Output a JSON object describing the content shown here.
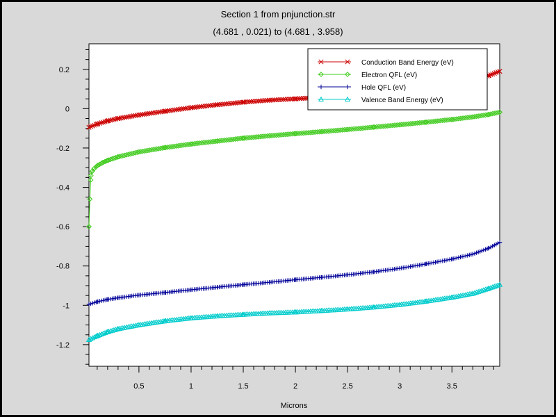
{
  "chart_data": {
    "type": "line",
    "title": "Section 1 from pnjunction.str",
    "subtitle": "(4.681 , 0.021) to (4.681 , 3.958)",
    "xlabel": "Microns",
    "ylabel": "",
    "xlim": [
      0.021,
      3.958
    ],
    "ylim": [
      -1.31,
      0.33
    ],
    "xticks": [
      {
        "v": 0.5,
        "label": "0.5"
      },
      {
        "v": 1,
        "label": "1"
      },
      {
        "v": 1.5,
        "label": "1.5"
      },
      {
        "v": 2,
        "label": "2"
      },
      {
        "v": 2.5,
        "label": "2.5"
      },
      {
        "v": 3,
        "label": "3"
      },
      {
        "v": 3.5,
        "label": "3.5"
      }
    ],
    "yticks": [
      {
        "v": 0.2,
        "label": "0.2"
      },
      {
        "v": 0,
        "label": "0"
      },
      {
        "v": -0.2,
        "label": "-0.2"
      },
      {
        "v": -0.4,
        "label": "-0.4"
      },
      {
        "v": -0.6,
        "label": "-0.6"
      },
      {
        "v": -0.8,
        "label": "-0.8"
      },
      {
        "v": -1,
        "label": "-1"
      },
      {
        "v": -1.2,
        "label": "-1.2"
      }
    ],
    "grid": false,
    "legend_position": "top-right",
    "series": [
      {
        "name": "Conduction Band Energy (eV)",
        "color": "#cc0000",
        "marker": "x",
        "x": [
          0.021,
          0.1,
          0.2,
          0.3,
          0.5,
          0.75,
          1.0,
          1.25,
          1.5,
          1.75,
          2.0,
          2.25,
          2.5,
          2.75,
          3.0,
          3.25,
          3.5,
          3.7,
          3.85,
          3.958
        ],
        "y": [
          -0.095,
          -0.078,
          -0.062,
          -0.05,
          -0.032,
          -0.013,
          0.005,
          0.02,
          0.033,
          0.043,
          0.05,
          0.058,
          0.068,
          0.078,
          0.09,
          0.105,
          0.125,
          0.145,
          0.168,
          0.19
        ]
      },
      {
        "name": "Electron QFL (eV)",
        "color": "#44cc22",
        "marker": "diamond",
        "x": [
          0.021,
          0.03,
          0.04,
          0.05,
          0.07,
          0.1,
          0.15,
          0.2,
          0.3,
          0.5,
          0.75,
          1.0,
          1.25,
          1.5,
          1.75,
          2.0,
          2.25,
          2.5,
          2.75,
          3.0,
          3.25,
          3.5,
          3.7,
          3.85,
          3.958
        ],
        "y": [
          -0.6,
          -0.46,
          -0.34,
          -0.32,
          -0.305,
          -0.29,
          -0.275,
          -0.263,
          -0.245,
          -0.22,
          -0.198,
          -0.18,
          -0.165,
          -0.15,
          -0.138,
          -0.127,
          -0.117,
          -0.106,
          -0.094,
          -0.082,
          -0.069,
          -0.055,
          -0.042,
          -0.03,
          -0.018
        ]
      },
      {
        "name": "Hole QFL (eV)",
        "color": "#000099",
        "marker": "plus",
        "x": [
          0.021,
          0.1,
          0.2,
          0.3,
          0.5,
          0.75,
          1.0,
          1.25,
          1.5,
          1.75,
          2.0,
          2.25,
          2.5,
          2.75,
          3.0,
          3.25,
          3.5,
          3.7,
          3.85,
          3.958
        ],
        "y": [
          -0.995,
          -0.982,
          -0.97,
          -0.962,
          -0.948,
          -0.935,
          -0.921,
          -0.908,
          -0.895,
          -0.883,
          -0.87,
          -0.858,
          -0.845,
          -0.83,
          -0.812,
          -0.79,
          -0.765,
          -0.74,
          -0.71,
          -0.68
        ]
      },
      {
        "name": "Valence Band Energy (eV)",
        "color": "#00cccc",
        "marker": "triangle",
        "x": [
          0.021,
          0.1,
          0.2,
          0.3,
          0.5,
          0.75,
          1.0,
          1.25,
          1.5,
          1.75,
          2.0,
          2.25,
          2.5,
          2.75,
          3.0,
          3.25,
          3.5,
          3.7,
          3.85,
          3.958
        ],
        "y": [
          -1.175,
          -1.155,
          -1.135,
          -1.12,
          -1.1,
          -1.08,
          -1.065,
          -1.055,
          -1.047,
          -1.04,
          -1.035,
          -1.028,
          -1.02,
          -1.01,
          -0.997,
          -0.98,
          -0.96,
          -0.94,
          -0.915,
          -0.895
        ]
      }
    ]
  }
}
